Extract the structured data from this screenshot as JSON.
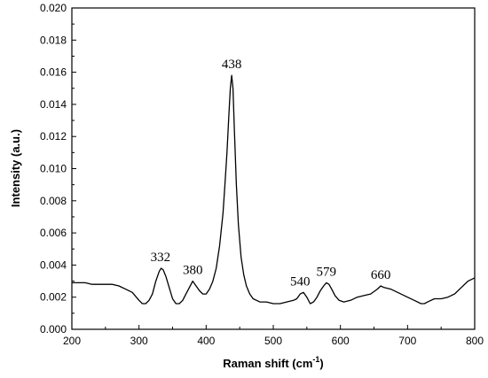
{
  "chart_data": {
    "type": "line",
    "title": "",
    "xlabel": "Raman shift (cm",
    "xlabel_sup": "-1",
    "xlabel_suffix": ")",
    "ylabel": "Intensity (a.u.)",
    "xlim": [
      200,
      800
    ],
    "ylim": [
      0.0,
      0.02
    ],
    "x_ticks": [
      "200",
      "300",
      "400",
      "500",
      "600",
      "700",
      "800"
    ],
    "y_ticks": [
      "0.000",
      "0.002",
      "0.004",
      "0.006",
      "0.008",
      "0.010",
      "0.012",
      "0.014",
      "0.016",
      "0.018",
      "0.020"
    ],
    "grid": false,
    "legend": "none",
    "line_color": "#000000",
    "peak_labels": [
      {
        "text": "332",
        "x": 332,
        "y": 0.0038
      },
      {
        "text": "380",
        "x": 380,
        "y": 0.003
      },
      {
        "text": "438",
        "x": 438,
        "y": 0.0158
      },
      {
        "text": "540",
        "x": 540,
        "y": 0.0023
      },
      {
        "text": "579",
        "x": 579,
        "y": 0.0029
      },
      {
        "text": "660",
        "x": 660,
        "y": 0.0027
      }
    ],
    "series": [
      {
        "x": [
          200,
          210,
          220,
          230,
          240,
          250,
          260,
          270,
          280,
          290,
          300,
          305,
          310,
          315,
          320,
          325,
          330,
          333,
          336,
          340,
          345,
          350,
          355,
          360,
          365,
          370,
          375,
          380,
          385,
          390,
          395,
          400,
          405,
          410,
          415,
          420,
          425,
          428,
          431,
          434,
          436,
          438,
          440,
          442,
          445,
          448,
          452,
          456,
          460,
          465,
          470,
          480,
          490,
          500,
          510,
          520,
          530,
          535,
          540,
          545,
          550,
          555,
          560,
          565,
          570,
          575,
          579,
          583,
          587,
          592,
          598,
          605,
          615,
          625,
          635,
          645,
          655,
          660,
          665,
          675,
          690,
          700,
          710,
          720,
          725,
          730,
          740,
          750,
          760,
          770,
          780,
          790,
          800
        ],
        "y": [
          0.0029,
          0.0029,
          0.0029,
          0.0028,
          0.0028,
          0.0028,
          0.0028,
          0.0027,
          0.0025,
          0.0023,
          0.0018,
          0.0016,
          0.0016,
          0.0018,
          0.0022,
          0.003,
          0.0036,
          0.0038,
          0.0037,
          0.0033,
          0.0026,
          0.0019,
          0.0016,
          0.0016,
          0.0018,
          0.0022,
          0.0026,
          0.003,
          0.0027,
          0.0024,
          0.0022,
          0.0022,
          0.0025,
          0.003,
          0.0038,
          0.0052,
          0.0072,
          0.009,
          0.011,
          0.0135,
          0.015,
          0.0158,
          0.015,
          0.0125,
          0.009,
          0.0065,
          0.0045,
          0.0034,
          0.0027,
          0.0022,
          0.0019,
          0.0017,
          0.0017,
          0.0016,
          0.0016,
          0.0017,
          0.0018,
          0.0019,
          0.0022,
          0.0023,
          0.002,
          0.0016,
          0.0017,
          0.002,
          0.0024,
          0.0027,
          0.0029,
          0.0028,
          0.0025,
          0.0021,
          0.0018,
          0.0017,
          0.0018,
          0.002,
          0.0021,
          0.0022,
          0.0025,
          0.0027,
          0.0026,
          0.0025,
          0.0022,
          0.002,
          0.0018,
          0.0016,
          0.0016,
          0.0017,
          0.0019,
          0.0019,
          0.002,
          0.0022,
          0.0026,
          0.003,
          0.0032
        ]
      }
    ]
  }
}
